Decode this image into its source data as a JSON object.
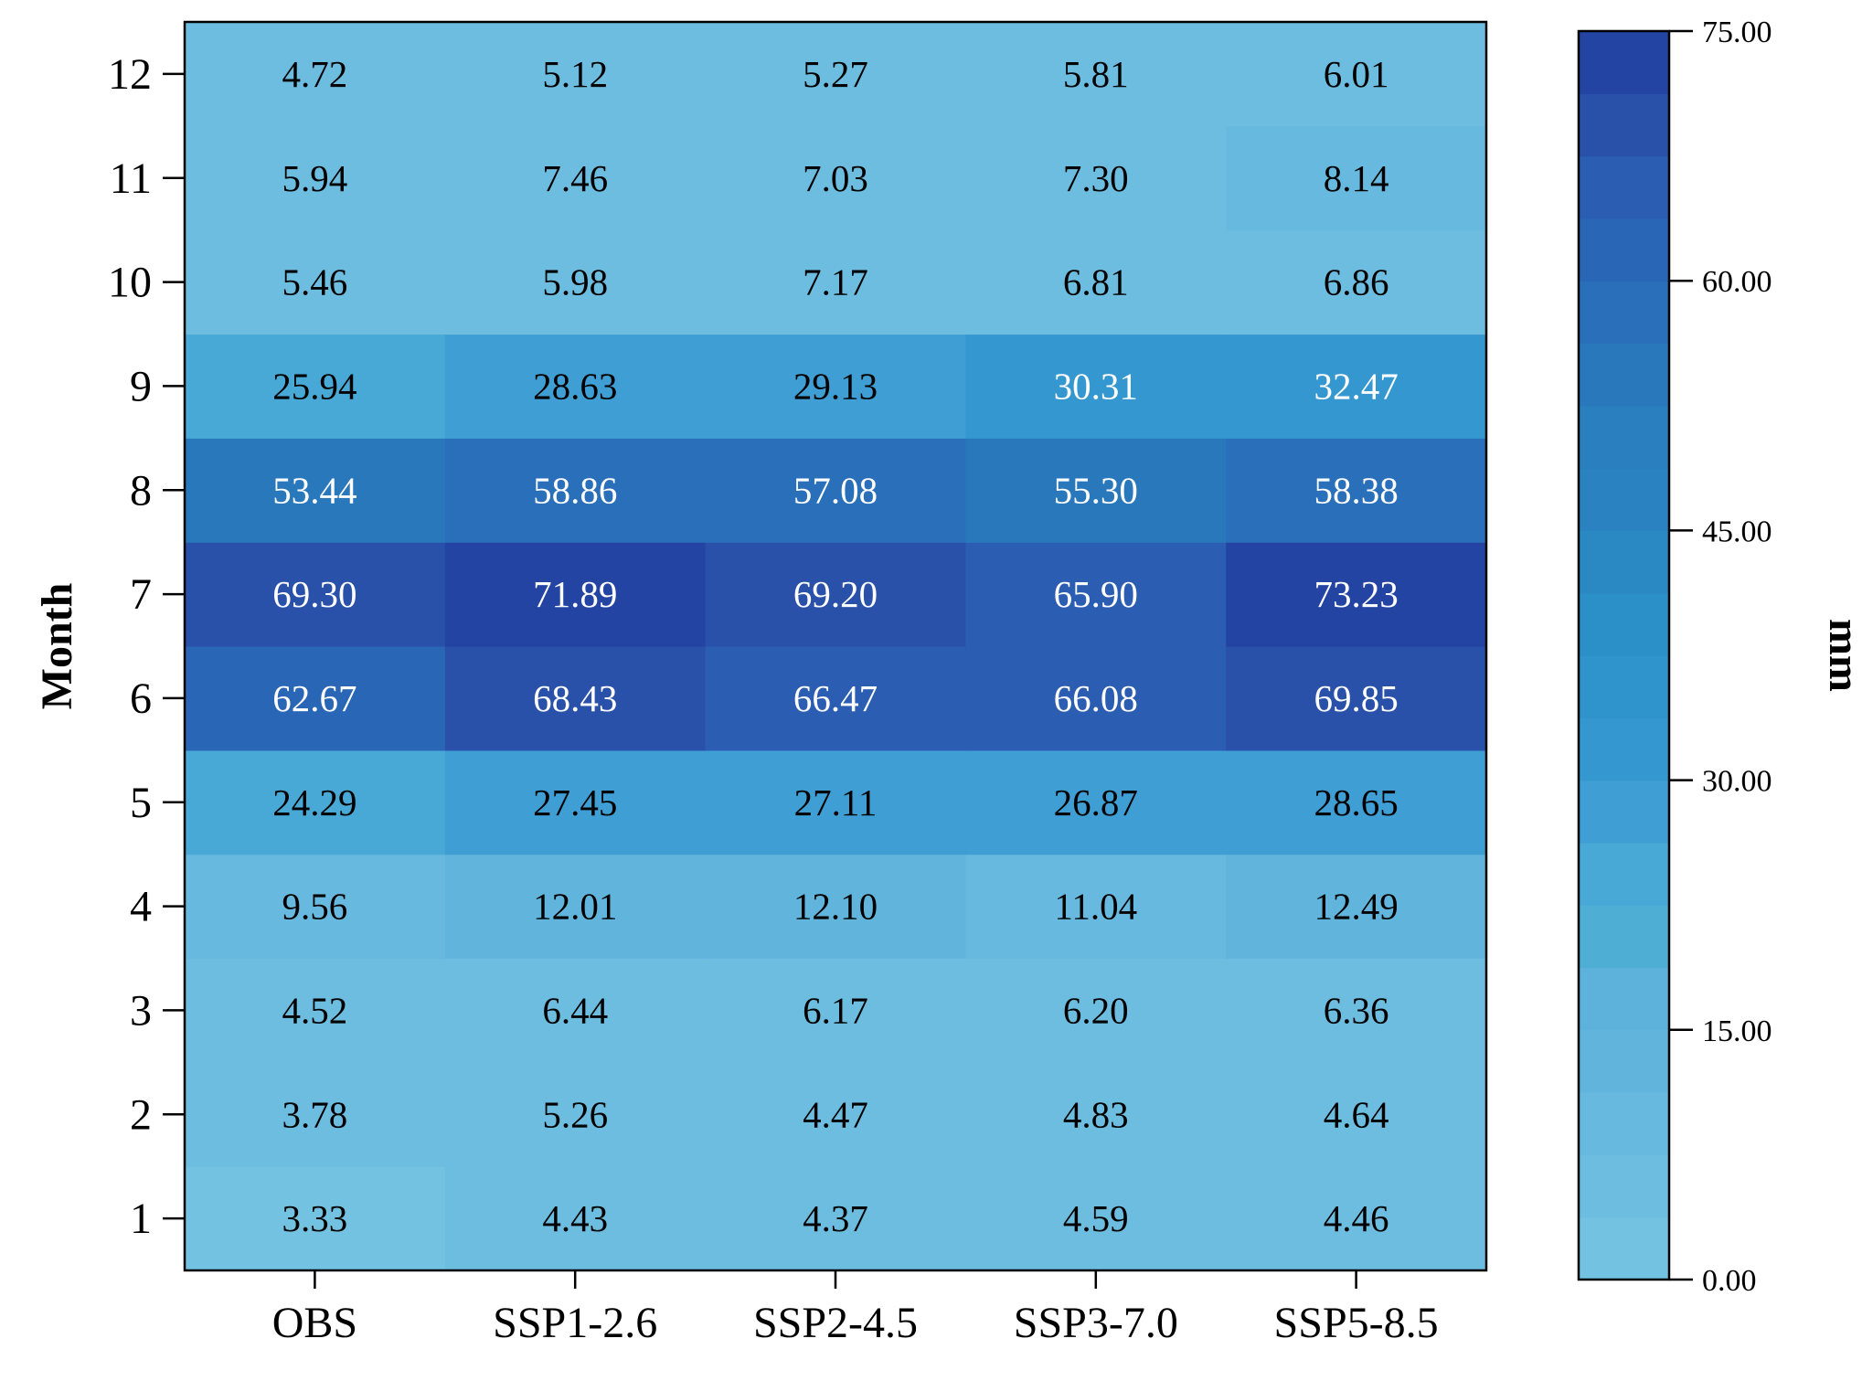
{
  "chart_data": {
    "type": "heatmap",
    "title": "",
    "xlabel": "",
    "ylabel": "Month",
    "categories": [
      "OBS",
      "SSP1-2.6",
      "SSP2-4.5",
      "SSP3-7.0",
      "SSP5-8.5"
    ],
    "y_categories": [
      "1",
      "2",
      "3",
      "4",
      "5",
      "6",
      "7",
      "8",
      "9",
      "10",
      "11",
      "12"
    ],
    "values": [
      [
        3.33,
        4.43,
        4.37,
        4.59,
        4.46
      ],
      [
        3.78,
        5.26,
        4.47,
        4.83,
        4.64
      ],
      [
        4.52,
        6.44,
        6.17,
        6.2,
        6.36
      ],
      [
        9.56,
        12.01,
        12.1,
        11.04,
        12.49
      ],
      [
        24.29,
        27.45,
        27.11,
        26.87,
        28.65
      ],
      [
        62.67,
        68.43,
        66.47,
        66.08,
        69.85
      ],
      [
        69.3,
        71.89,
        69.2,
        65.9,
        73.23
      ],
      [
        53.44,
        58.86,
        57.08,
        55.3,
        58.38
      ],
      [
        25.94,
        28.63,
        29.13,
        30.31,
        32.47
      ],
      [
        5.46,
        5.98,
        7.17,
        6.81,
        6.86
      ],
      [
        5.94,
        7.46,
        7.03,
        7.3,
        8.14
      ],
      [
        4.72,
        5.12,
        5.27,
        5.81,
        6.01
      ]
    ],
    "cell_labels": [
      [
        "3.33",
        "4.43",
        "4.37",
        "4.59",
        "4.46"
      ],
      [
        "3.78",
        "5.26",
        "4.47",
        "4.83",
        "4.64"
      ],
      [
        "4.52",
        "6.44",
        "6.17",
        "6.20",
        "6.36"
      ],
      [
        "9.56",
        "12.01",
        "12.10",
        "11.04",
        "12.49"
      ],
      [
        "24.29",
        "27.45",
        "27.11",
        "26.87",
        "28.65"
      ],
      [
        "62.67",
        "68.43",
        "66.47",
        "66.08",
        "69.85"
      ],
      [
        "69.30",
        "71.89",
        "69.20",
        "65.90",
        "73.23"
      ],
      [
        "53.44",
        "58.86",
        "57.08",
        "55.30",
        "58.38"
      ],
      [
        "25.94",
        "28.63",
        "29.13",
        "30.31",
        "32.47"
      ],
      [
        "5.46",
        "5.98",
        "7.17",
        "6.81",
        "6.86"
      ],
      [
        "5.94",
        "7.46",
        "7.03",
        "7.30",
        "8.14"
      ],
      [
        "4.72",
        "5.12",
        "5.27",
        "5.81",
        "6.01"
      ]
    ],
    "colorbar": {
      "label": "mm",
      "range": [
        0,
        75
      ],
      "ticks": [
        0,
        15,
        30,
        45,
        60,
        75
      ],
      "tick_labels": [
        "0.00",
        "15.00",
        "30.00",
        "45.00",
        "60.00",
        "75.00"
      ],
      "levels": 20,
      "colors": [
        "#73c2e2",
        "#6dbde0",
        "#68b9df",
        "#61b5dd",
        "#5db2db",
        "#4eaed3",
        "#48a8d6",
        "#3f9ed3",
        "#3597cf",
        "#2f94cb",
        "#2b8fc8",
        "#2a88c3",
        "#2a82c1",
        "#2a7fbe",
        "#2a78bc",
        "#2a6fb9",
        "#2a66b6",
        "#2b5db2",
        "#2951aa",
        "#2444a3"
      ]
    },
    "legend": "colorbar-right",
    "grid": false
  }
}
